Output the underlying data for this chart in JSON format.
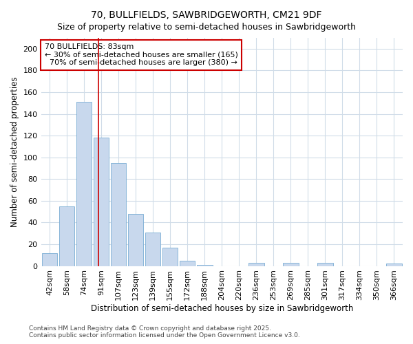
{
  "title": "70, BULLFIELDS, SAWBRIDGEWORTH, CM21 9DF",
  "subtitle": "Size of property relative to semi-detached houses in Sawbridgeworth",
  "xlabel": "Distribution of semi-detached houses by size in Sawbridgeworth",
  "ylabel": "Number of semi-detached properties",
  "categories": [
    "42sqm",
    "58sqm",
    "74sqm",
    "91sqm",
    "107sqm",
    "123sqm",
    "139sqm",
    "155sqm",
    "172sqm",
    "188sqm",
    "204sqm",
    "220sqm",
    "236sqm",
    "253sqm",
    "269sqm",
    "285sqm",
    "301sqm",
    "317sqm",
    "334sqm",
    "350sqm",
    "366sqm"
  ],
  "values": [
    12,
    55,
    151,
    118,
    95,
    48,
    31,
    17,
    5,
    1,
    0,
    0,
    3,
    0,
    3,
    0,
    3,
    0,
    0,
    0,
    2
  ],
  "bar_color": "#c8d8ed",
  "bar_edge_color": "#7aadd4",
  "vline_x": 2.85,
  "vline_color": "#cc0000",
  "annotation_text": "70 BULLFIELDS: 83sqm\n← 30% of semi-detached houses are smaller (165)\n  70% of semi-detached houses are larger (380) →",
  "annotation_box_color": "#ffffff",
  "annotation_box_edge_color": "#cc0000",
  "ylim": [
    0,
    210
  ],
  "yticks": [
    0,
    20,
    40,
    60,
    80,
    100,
    120,
    140,
    160,
    180,
    200
  ],
  "footer": "Contains HM Land Registry data © Crown copyright and database right 2025.\nContains public sector information licensed under the Open Government Licence v3.0.",
  "bg_color": "#ffffff",
  "grid_color": "#d0dce8",
  "title_fontsize": 10,
  "subtitle_fontsize": 9,
  "axis_label_fontsize": 8.5,
  "tick_fontsize": 8,
  "annotation_fontsize": 8,
  "footer_fontsize": 6.5
}
